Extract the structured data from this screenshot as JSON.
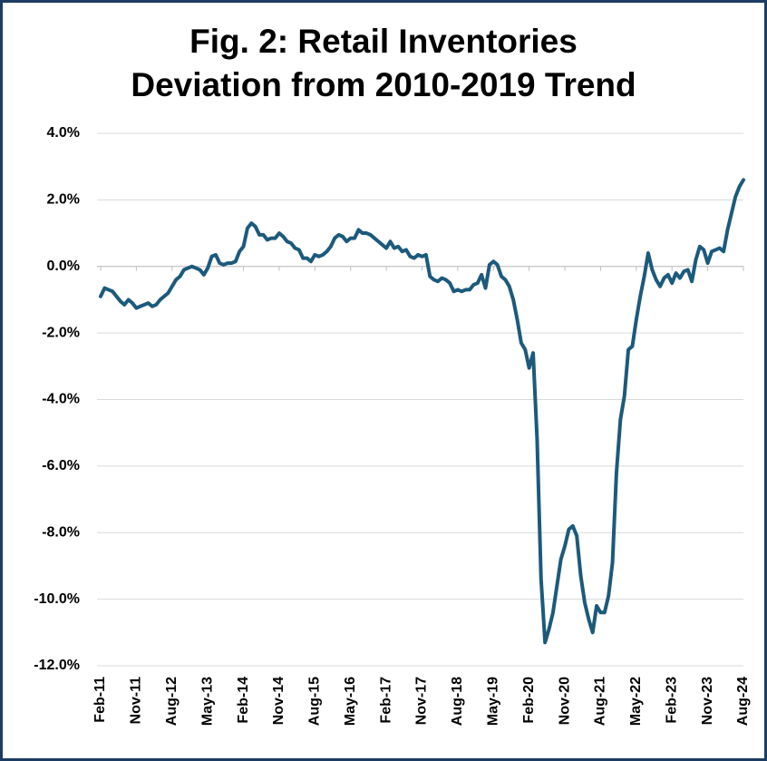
{
  "chart_data": {
    "type": "line",
    "title": "Fig. 2: Retail Inventories Deviation from 2010-2019 Trend",
    "categories": [
      "Feb-11",
      null,
      null,
      null,
      null,
      null,
      null,
      null,
      null,
      "Nov-11",
      null,
      null,
      null,
      null,
      null,
      null,
      null,
      null,
      "Aug-12",
      null,
      null,
      null,
      null,
      null,
      null,
      null,
      null,
      "May-13",
      null,
      null,
      null,
      null,
      null,
      null,
      null,
      null,
      "Feb-14",
      null,
      null,
      null,
      null,
      null,
      null,
      null,
      null,
      "Nov-14",
      null,
      null,
      null,
      null,
      null,
      null,
      null,
      null,
      "Aug-15",
      null,
      null,
      null,
      null,
      null,
      null,
      null,
      null,
      "May-16",
      null,
      null,
      null,
      null,
      null,
      null,
      null,
      null,
      "Feb-17",
      null,
      null,
      null,
      null,
      null,
      null,
      null,
      null,
      "Nov-17",
      null,
      null,
      null,
      null,
      null,
      null,
      null,
      null,
      "Aug-18",
      null,
      null,
      null,
      null,
      null,
      null,
      null,
      null,
      "May-19",
      null,
      null,
      null,
      null,
      null,
      null,
      null,
      null,
      "Feb-20",
      null,
      null,
      null,
      null,
      null,
      null,
      null,
      null,
      "Nov-20",
      null,
      null,
      null,
      null,
      null,
      null,
      null,
      null,
      "Aug-21",
      null,
      null,
      null,
      null,
      null,
      null,
      null,
      null,
      "May-22",
      null,
      null,
      null,
      null,
      null,
      null,
      null,
      null,
      "Feb-23",
      null,
      null,
      null,
      null,
      null,
      null,
      null,
      null,
      "Nov-23",
      null,
      null,
      null,
      null,
      null,
      null,
      null,
      null,
      "Aug-24"
    ],
    "values": [
      -0.9,
      -0.65,
      -0.7,
      -0.75,
      -0.9,
      -1.05,
      -1.15,
      -1.0,
      -1.1,
      -1.25,
      -1.2,
      -1.15,
      -1.1,
      -1.2,
      -1.15,
      -1.0,
      -0.9,
      -0.8,
      -0.6,
      -0.4,
      -0.3,
      -0.1,
      -0.05,
      0.0,
      -0.05,
      -0.1,
      -0.25,
      -0.05,
      0.3,
      0.35,
      0.1,
      0.05,
      0.1,
      0.1,
      0.15,
      0.45,
      0.6,
      1.15,
      1.3,
      1.2,
      0.95,
      0.95,
      0.8,
      0.85,
      0.85,
      1.0,
      0.9,
      0.75,
      0.7,
      0.55,
      0.5,
      0.25,
      0.25,
      0.15,
      0.35,
      0.3,
      0.35,
      0.45,
      0.6,
      0.85,
      0.95,
      0.9,
      0.75,
      0.85,
      0.85,
      1.1,
      1.0,
      1.0,
      0.95,
      0.85,
      0.75,
      0.65,
      0.55,
      0.75,
      0.55,
      0.6,
      0.45,
      0.5,
      0.3,
      0.25,
      0.35,
      0.3,
      0.35,
      -0.3,
      -0.4,
      -0.45,
      -0.35,
      -0.4,
      -0.5,
      -0.75,
      -0.7,
      -0.75,
      -0.7,
      -0.7,
      -0.55,
      -0.5,
      -0.25,
      -0.65,
      0.05,
      0.15,
      0.05,
      -0.3,
      -0.4,
      -0.6,
      -1.0,
      -1.6,
      -2.3,
      -2.5,
      -3.05,
      -2.6,
      -5.2,
      -9.4,
      -11.3,
      -10.9,
      -10.4,
      -9.6,
      -8.8,
      -8.4,
      -7.9,
      -7.8,
      -8.1,
      -9.3,
      -10.1,
      -10.6,
      -11.0,
      -10.2,
      -10.4,
      -10.4,
      -9.9,
      -8.9,
      -6.2,
      -4.6,
      -3.9,
      -2.5,
      -2.4,
      -1.6,
      -0.9,
      -0.3,
      0.4,
      -0.1,
      -0.4,
      -0.6,
      -0.35,
      -0.25,
      -0.5,
      -0.2,
      -0.35,
      -0.15,
      -0.1,
      -0.45,
      0.2,
      0.6,
      0.5,
      0.1,
      0.45,
      0.5,
      0.55,
      0.45,
      1.1,
      1.6,
      2.1,
      2.4,
      2.6
    ],
    "color": "#1c5a7c",
    "ylim": [
      -12,
      4
    ],
    "yticks": [
      {
        "value": -12,
        "label": "-12.0%"
      },
      {
        "value": -10,
        "label": "-10.0%"
      },
      {
        "value": -8,
        "label": "-8.0%"
      },
      {
        "value": -6,
        "label": "-6.0%"
      },
      {
        "value": -4,
        "label": "-4.0%"
      },
      {
        "value": -2,
        "label": "-2.0%"
      },
      {
        "value": 0,
        "label": "0.0%"
      },
      {
        "value": 2,
        "label": "2.0%"
      },
      {
        "value": 4,
        "label": "4.0%"
      }
    ],
    "grid": true
  }
}
